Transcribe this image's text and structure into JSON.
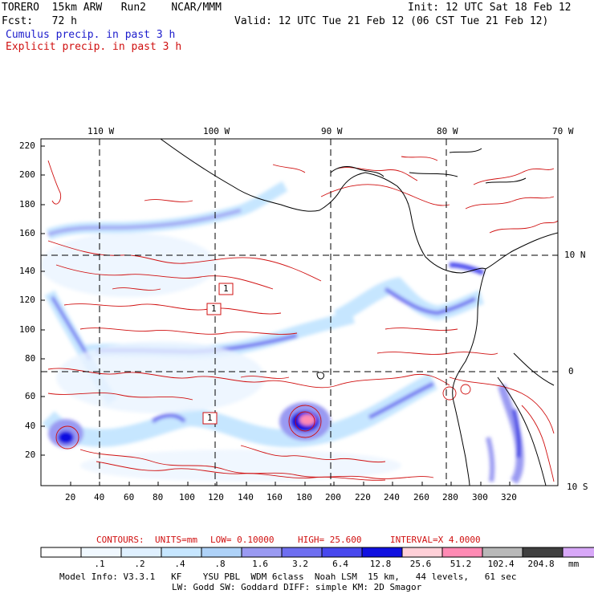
{
  "header": {
    "model_line": "TORERO  15km ARW   Run2    NCAR/MMM",
    "fcst_line": "Fcst:   72 h",
    "init_line": "Init: 12 UTC Sat 18 Feb 12",
    "valid_line": "Valid: 12 UTC Tue 21 Feb 12 (06 CST Tue 21 Feb 12)",
    "cumulus_label": "Cumulus precip. in past 3 h",
    "explicit_label": "Explicit precip. in past 3 h"
  },
  "colors": {
    "cumulus": "#1c1ccc",
    "explicit": "#d01010",
    "coast": "#000000"
  },
  "map": {
    "lon_top_labels": [
      "110 W",
      "100 W",
      "90 W",
      "80 W",
      "70 W"
    ],
    "lat_right_labels": [
      "10 N",
      "0",
      "10 S"
    ],
    "y_grid_labels": [
      "220",
      "200",
      "180",
      "160",
      "140",
      "120",
      "100",
      "80",
      "60",
      "40",
      "20"
    ],
    "x_grid_labels": [
      "20",
      "40",
      "60",
      "80",
      "100",
      "120",
      "140",
      "160",
      "180",
      "200",
      "220",
      "240",
      "260",
      "280",
      "300",
      "320"
    ],
    "box_labels": [
      "1",
      "1",
      "1"
    ]
  },
  "contours_info": {
    "prefix": "CONTOURS:",
    "units": "UNITS=mm",
    "low": "LOW= 0.10000",
    "high": "HIGH= 25.600",
    "interval": "INTERVAL=X 4.0000"
  },
  "colorbar": {
    "colors": [
      "#ffffff",
      "#f0f8ff",
      "#dff0ff",
      "#c6e6ff",
      "#aed2f8",
      "#9a9af2",
      "#6e6ef0",
      "#4848ee",
      "#1010e0",
      "#ffd0d8",
      "#ff8ab4",
      "#b8b8b8",
      "#404040",
      "#d8a8f8"
    ],
    "ticks": [
      ".1",
      ".2",
      ".4",
      ".8",
      "1.6",
      "3.2",
      "6.4",
      "12.8",
      "25.6",
      "51.2",
      "102.4",
      "204.8"
    ],
    "unit": "mm"
  },
  "footer": {
    "line1": "Model Info: V3.3.1   KF    YSU PBL  WDM 6class  Noah LSM  15 km,   44 levels,   61 sec",
    "line2": "LW: Godd SW: Goddard DIFF: simple KM: 2D Smagor"
  }
}
